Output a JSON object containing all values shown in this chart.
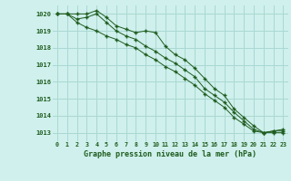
{
  "title": "Graphe pression niveau de la mer (hPa)",
  "xlim": [
    -0.5,
    23.5
  ],
  "ylim": [
    1012.5,
    1020.5
  ],
  "yticks": [
    1013,
    1014,
    1015,
    1016,
    1017,
    1018,
    1019,
    1020
  ],
  "background_color": "#cff0ec",
  "grid_color": "#aad8d3",
  "line_color": "#1e5c1e",
  "series": [
    [
      1020.0,
      1020.0,
      1020.0,
      1020.0,
      1020.2,
      1019.8,
      1019.3,
      1019.1,
      1018.9,
      1019.0,
      1018.9,
      1018.1,
      1017.6,
      1017.3,
      1016.8,
      1016.2,
      1015.6,
      1015.2,
      1014.4,
      1013.9,
      1013.4,
      1013.0,
      1013.1,
      1013.2
    ],
    [
      1020.0,
      1020.0,
      1019.7,
      1019.8,
      1020.0,
      1019.5,
      1019.0,
      1018.7,
      1018.5,
      1018.1,
      1017.8,
      1017.4,
      1017.1,
      1016.7,
      1016.3,
      1015.6,
      1015.2,
      1014.8,
      1014.2,
      1013.7,
      1013.2,
      1013.0,
      1013.1,
      1013.1
    ],
    [
      1020.0,
      1020.0,
      1019.5,
      1019.2,
      1019.0,
      1018.7,
      1018.5,
      1018.2,
      1018.0,
      1017.6,
      1017.3,
      1016.9,
      1016.6,
      1016.2,
      1015.8,
      1015.3,
      1014.9,
      1014.5,
      1013.9,
      1013.5,
      1013.1,
      1013.0,
      1013.0,
      1013.0
    ]
  ]
}
